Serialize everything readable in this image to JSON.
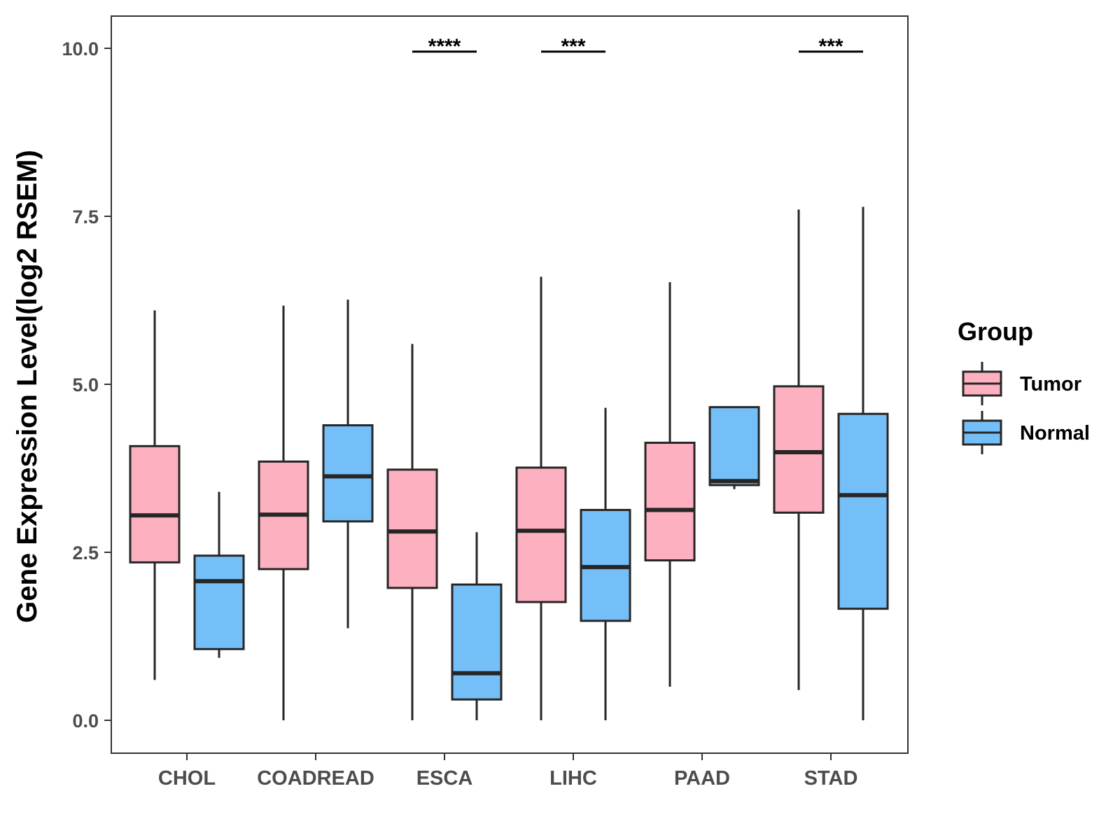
{
  "chart_data": {
    "type": "boxplot",
    "title": "",
    "xlabel": "",
    "ylabel": "Gene Expression Level(log2 RSEM)",
    "ylim": [
      -0.45,
      10.5
    ],
    "yticks": [
      0.0,
      2.5,
      5.0,
      7.5,
      10.0
    ],
    "ytick_labels": [
      "0.0",
      "2.5",
      "5.0",
      "7.5",
      "10.0"
    ],
    "grid": false,
    "legend": {
      "title": "Group",
      "position": "right",
      "entries": [
        {
          "name": "Tumor",
          "color": "#FDB0C0"
        },
        {
          "name": "Normal",
          "color": "#75BFF8"
        }
      ]
    },
    "categories": [
      "CHOL",
      "COADREAD",
      "ESCA",
      "LIHC",
      "PAAD",
      "STAD"
    ],
    "series": [
      {
        "name": "Tumor",
        "color": "#FDB0C0",
        "boxes": [
          {
            "category": "CHOL",
            "whisker_low": 0.6,
            "q1": 2.35,
            "median": 3.05,
            "q3": 4.08,
            "whisker_high": 6.1
          },
          {
            "category": "COADREAD",
            "whisker_low": 0.0,
            "q1": 2.25,
            "median": 3.06,
            "q3": 3.85,
            "whisker_high": 6.17
          },
          {
            "category": "ESCA",
            "whisker_low": 0.0,
            "q1": 1.97,
            "median": 2.81,
            "q3": 3.73,
            "whisker_high": 5.6
          },
          {
            "category": "LIHC",
            "whisker_low": 0.0,
            "q1": 1.76,
            "median": 2.82,
            "q3": 3.76,
            "whisker_high": 6.6
          },
          {
            "category": "PAAD",
            "whisker_low": 0.5,
            "q1": 2.38,
            "median": 3.13,
            "q3": 4.13,
            "whisker_high": 6.52
          },
          {
            "category": "STAD",
            "whisker_low": 0.45,
            "q1": 3.09,
            "median": 3.99,
            "q3": 4.97,
            "whisker_high": 7.6
          }
        ]
      },
      {
        "name": "Normal",
        "color": "#75BFF8",
        "boxes": [
          {
            "category": "CHOL",
            "whisker_low": 0.93,
            "q1": 1.06,
            "median": 2.07,
            "q3": 2.45,
            "whisker_high": 3.4
          },
          {
            "category": "COADREAD",
            "whisker_low": 1.37,
            "q1": 2.96,
            "median": 3.63,
            "q3": 4.39,
            "whisker_high": 6.26
          },
          {
            "category": "ESCA",
            "whisker_low": 0.0,
            "q1": 0.31,
            "median": 0.7,
            "q3": 2.02,
            "whisker_high": 2.8
          },
          {
            "category": "LIHC",
            "whisker_low": 0.0,
            "q1": 1.48,
            "median": 2.28,
            "q3": 3.13,
            "whisker_high": 4.65
          },
          {
            "category": "PAAD",
            "whisker_low": 3.44,
            "q1": 3.5,
            "median": 3.56,
            "q3": 4.66,
            "whisker_high": 4.66
          },
          {
            "category": "STAD",
            "whisker_low": 0.0,
            "q1": 1.66,
            "median": 3.35,
            "q3": 4.56,
            "whisker_high": 7.64
          }
        ]
      }
    ],
    "annotations": [
      {
        "category": "ESCA",
        "label": "****",
        "y": 9.95
      },
      {
        "category": "LIHC",
        "label": "***",
        "y": 9.95
      },
      {
        "category": "STAD",
        "label": "***",
        "y": 9.95
      }
    ]
  }
}
